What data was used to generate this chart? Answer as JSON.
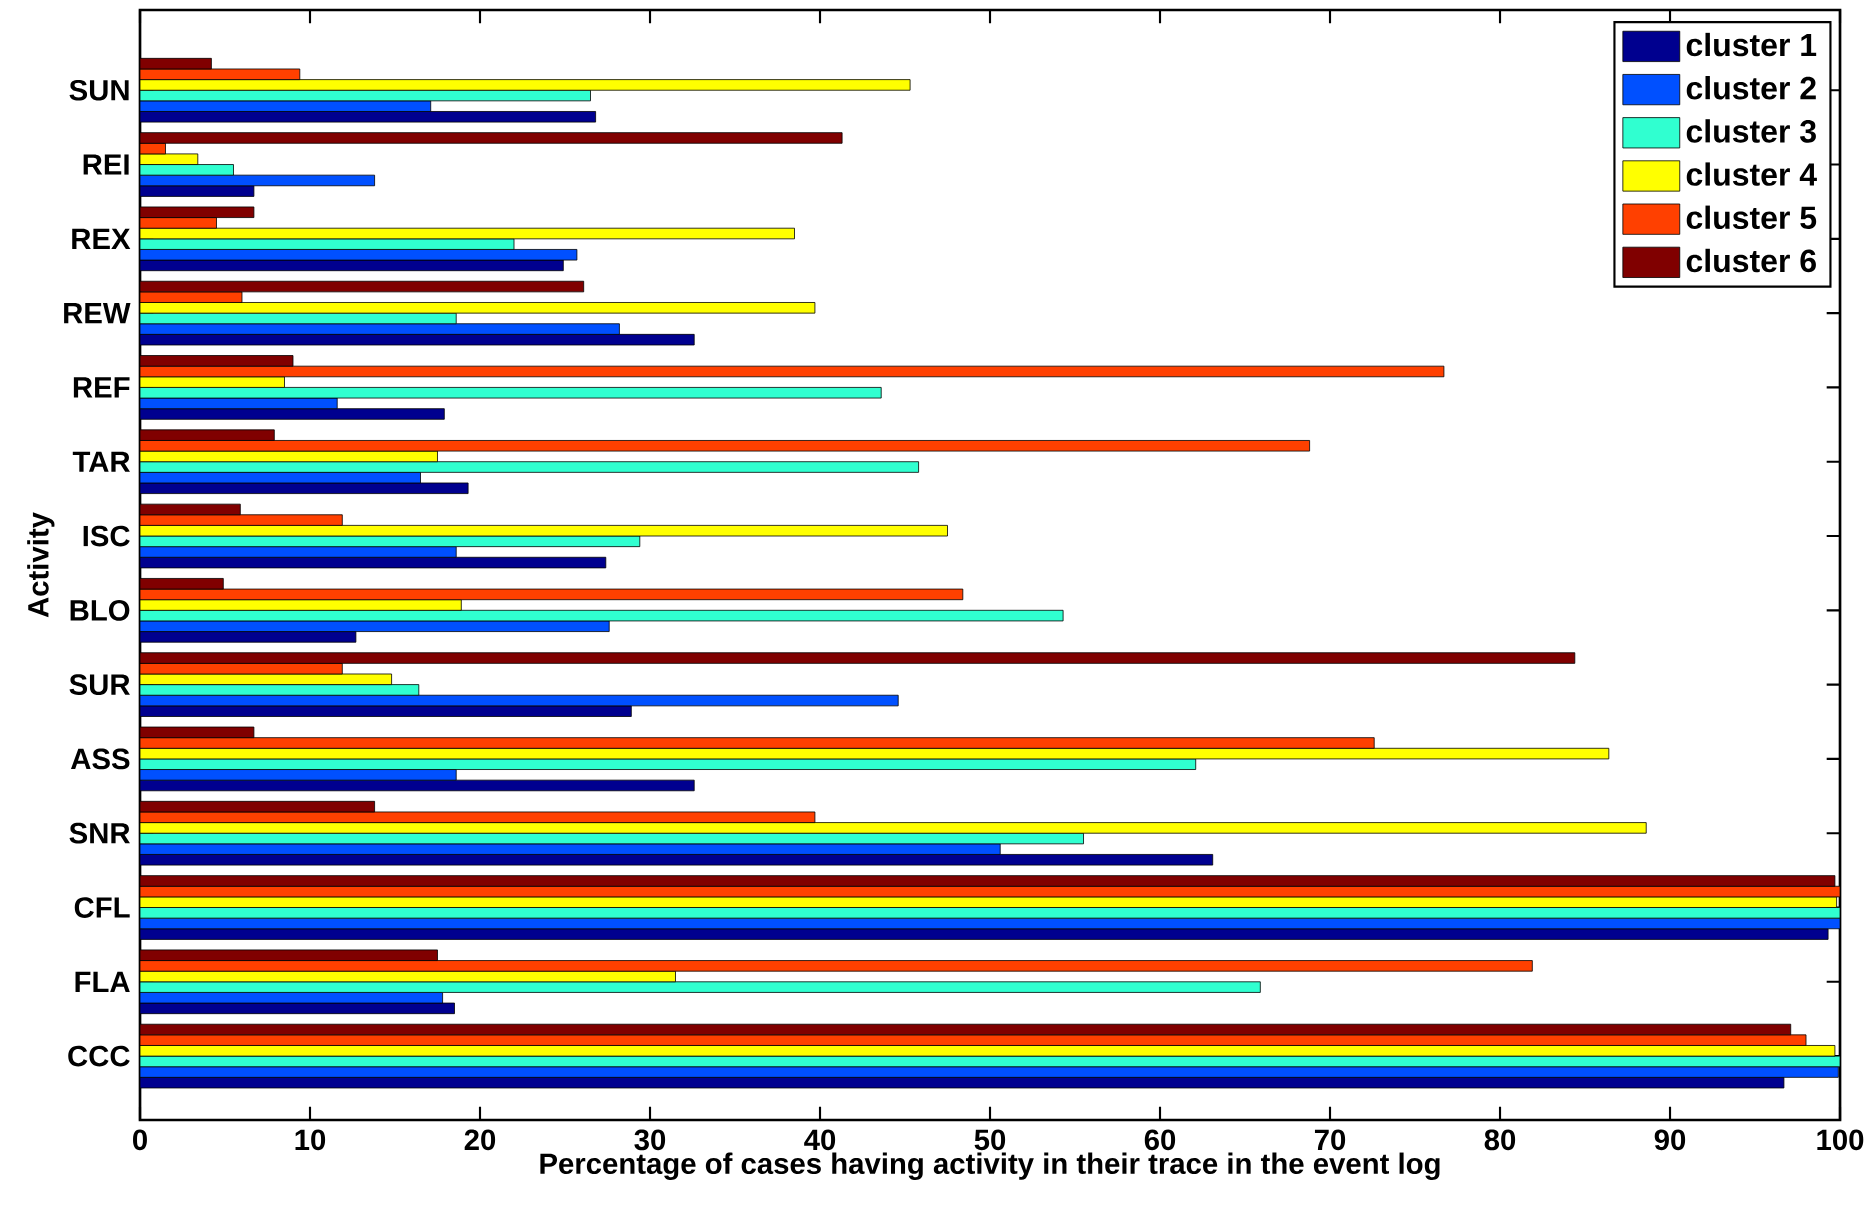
{
  "chart_data": {
    "type": "bar",
    "orientation": "horizontal",
    "xlabel": "Percentage of cases having activity in their trace in the event log",
    "ylabel": "Activity",
    "categories": [
      "SUN",
      "REI",
      "REX",
      "REW",
      "REF",
      "TAR",
      "ISC",
      "BLO",
      "SUR",
      "ASS",
      "SNR",
      "CFL",
      "FLA",
      "CCC"
    ],
    "series": [
      {
        "name": "cluster 1",
        "color": "#00008f",
        "values": [
          26.8,
          6.7,
          24.9,
          32.6,
          17.9,
          19.3,
          27.4,
          12.7,
          28.9,
          32.6,
          63.1,
          99.3,
          18.5,
          96.7
        ]
      },
      {
        "name": "cluster 2",
        "color": "#0050ff",
        "values": [
          17.1,
          13.8,
          25.7,
          28.2,
          11.6,
          16.5,
          18.6,
          27.6,
          44.6,
          18.6,
          50.6,
          100,
          17.8,
          99.9
        ]
      },
      {
        "name": "cluster 3",
        "color": "#30ffd0",
        "values": [
          26.5,
          5.5,
          22.0,
          18.6,
          43.6,
          45.8,
          29.4,
          54.3,
          16.4,
          62.1,
          55.5,
          100,
          65.9,
          100
        ]
      },
      {
        "name": "cluster 4",
        "color": "#ffff00",
        "values": [
          45.3,
          3.4,
          38.5,
          39.7,
          8.5,
          17.5,
          47.5,
          18.9,
          14.8,
          86.4,
          88.6,
          99.8,
          31.5,
          99.7
        ]
      },
      {
        "name": "cluster 5",
        "color": "#ff4000",
        "values": [
          9.4,
          1.5,
          4.5,
          6.0,
          76.7,
          68.8,
          11.9,
          48.4,
          11.9,
          72.6,
          39.7,
          100,
          81.9,
          98.0
        ]
      },
      {
        "name": "cluster 6",
        "color": "#800000",
        "values": [
          4.2,
          41.3,
          6.7,
          26.1,
          9.0,
          7.9,
          5.9,
          4.9,
          84.4,
          6.7,
          13.8,
          99.7,
          17.5,
          97.1
        ]
      }
    ],
    "xlim": [
      0,
      100
    ],
    "xticks": [
      0,
      10,
      20,
      30,
      40,
      50,
      60,
      70,
      80,
      90,
      100
    ],
    "legend": "top right"
  }
}
